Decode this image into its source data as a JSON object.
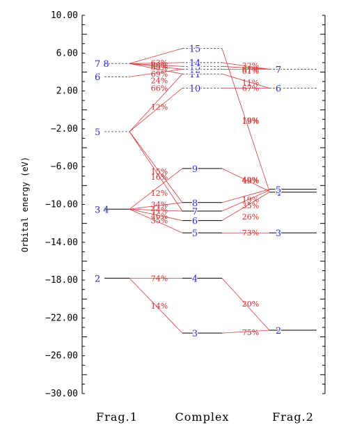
{
  "chart_data": {
    "type": "orbital-correlation-diagram",
    "ylabel": "Orbital energy (eV)",
    "ylim": [
      -30,
      10
    ],
    "y_ticks": [
      "10.00",
      "6.00",
      "2.00",
      "−2.00",
      "−6.00",
      "−10.00",
      "−14.00",
      "−18.00",
      "−22.00",
      "−26.00",
      "−30.00"
    ],
    "y_tick_values": [
      10,
      6,
      2,
      -2,
      -6,
      -10,
      -14,
      -18,
      -22,
      -26,
      -30
    ],
    "columns": [
      "Frag.1",
      "Complex",
      "Frag.2"
    ],
    "levels": {
      "frag1": [
        {
          "label": "2",
          "energy": -17.8,
          "occupied": true
        },
        {
          "label": "3 4",
          "energy": -10.5,
          "occupied": true
        },
        {
          "label": "5",
          "energy": -2.3,
          "occupied": false
        },
        {
          "label": "6",
          "energy": 3.5,
          "occupied": false
        },
        {
          "label": "7 8",
          "energy": 4.9,
          "occupied": false
        }
      ],
      "complex": [
        {
          "label": "3",
          "energy": -23.6,
          "occupied": true
        },
        {
          "label": "4",
          "energy": -17.8,
          "occupied": true
        },
        {
          "label": "5",
          "energy": -13.0,
          "occupied": true
        },
        {
          "label": "6",
          "energy": -11.7,
          "occupied": true
        },
        {
          "label": "7",
          "energy": -10.7,
          "occupied": true
        },
        {
          "label": "8",
          "energy": -9.8,
          "occupied": true
        },
        {
          "label": "9",
          "energy": -6.2,
          "occupied": true
        },
        {
          "label": "10",
          "energy": 2.3,
          "occupied": false
        },
        {
          "label": "11",
          "energy": 3.8,
          "occupied": false
        },
        {
          "label": "12",
          "energy": 4.3,
          "occupied": false
        },
        {
          "label": "13",
          "energy": 4.6,
          "occupied": false
        },
        {
          "label": "14",
          "energy": 5.0,
          "occupied": false
        },
        {
          "label": "15",
          "energy": 6.5,
          "occupied": false
        }
      ],
      "frag2": [
        {
          "label": "2",
          "energy": -23.3,
          "occupied": true
        },
        {
          "label": "3",
          "energy": -13.0,
          "occupied": true
        },
        {
          "label": "4",
          "energy": -8.7,
          "occupied": true
        },
        {
          "label": "5",
          "energy": -8.4,
          "occupied": true
        },
        {
          "label": "6",
          "energy": 2.3,
          "occupied": false
        },
        {
          "label": "7",
          "energy": 4.3,
          "occupied": false
        }
      ]
    },
    "percent_labels": {
      "left": [
        {
          "text": "63%",
          "energy": 5.0
        },
        {
          "text": "88%",
          "energy": 4.7
        },
        {
          "text": "83%",
          "energy": 4.5
        },
        {
          "text": "69%",
          "energy": 3.8
        },
        {
          "text": "24%",
          "energy": 3.1
        },
        {
          "text": "66%",
          "energy": 2.3
        },
        {
          "text": "12%",
          "energy": 0.3
        },
        {
          "text": "15%",
          "energy": -6.5
        },
        {
          "text": "16%",
          "energy": -7.1
        },
        {
          "text": "12%",
          "energy": -8.8
        },
        {
          "text": "34%",
          "energy": -10.0
        },
        {
          "text": "44%",
          "energy": -10.6
        },
        {
          "text": "46%",
          "energy": -11.2
        },
        {
          "text": "35%",
          "energy": -11.7
        },
        {
          "text": "74%",
          "energy": -17.8
        },
        {
          "text": "14%",
          "energy": -20.7
        }
      ],
      "right": [
        {
          "text": "32%",
          "energy": 4.7
        },
        {
          "text": "61%",
          "energy": 4.3
        },
        {
          "text": "61%",
          "energy": 4.1
        },
        {
          "text": "11%",
          "energy": 2.9
        },
        {
          "text": "67%",
          "energy": 2.3
        },
        {
          "text": "19%",
          "energy": -1.1
        },
        {
          "text": "19%",
          "energy": -1.2
        },
        {
          "text": "49%",
          "energy": -7.4
        },
        {
          "text": "49%",
          "energy": -7.5
        },
        {
          "text": "19%",
          "energy": -9.5
        },
        {
          "text": "35%",
          "energy": -10.1
        },
        {
          "text": "26%",
          "energy": -11.3
        },
        {
          "text": "73%",
          "energy": -13.0
        },
        {
          "text": "20%",
          "energy": -20.5
        },
        {
          "text": "75%",
          "energy": -23.5
        }
      ]
    },
    "connections": {
      "frag1_to_complex": [
        [
          -17.8,
          -17.8
        ],
        [
          -17.8,
          -23.6
        ],
        [
          -10.5,
          -13.0
        ],
        [
          -10.5,
          -11.7
        ],
        [
          -10.5,
          -10.7
        ],
        [
          -10.5,
          -9.8
        ],
        [
          -10.5,
          -6.2
        ],
        [
          -2.3,
          -9.8
        ],
        [
          -2.3,
          -10.7
        ],
        [
          -2.3,
          2.3
        ],
        [
          -2.3,
          3.8
        ],
        [
          3.5,
          4.3
        ],
        [
          4.9,
          5.0
        ],
        [
          4.9,
          4.6
        ],
        [
          4.9,
          4.3
        ],
        [
          4.9,
          3.8
        ],
        [
          4.9,
          6.5
        ]
      ],
      "complex_to_frag2": [
        [
          -23.6,
          -23.3
        ],
        [
          -17.8,
          -23.3
        ],
        [
          -13.0,
          -13.0
        ],
        [
          -11.7,
          -8.7
        ],
        [
          -10.7,
          -8.5
        ],
        [
          -9.8,
          -8.4
        ],
        [
          -6.2,
          -8.6
        ],
        [
          2.3,
          2.3
        ],
        [
          3.8,
          2.3
        ],
        [
          4.3,
          4.3
        ],
        [
          4.6,
          4.3
        ],
        [
          5.0,
          4.3
        ],
        [
          6.5,
          -8.6
        ]
      ]
    },
    "colors": {
      "level_label": "#2a2ad6",
      "percent_label": "#d62a2a",
      "connector": "#d63a3a",
      "occupied_level": "#000000",
      "virtual_level": "#555555"
    },
    "grid": false
  }
}
